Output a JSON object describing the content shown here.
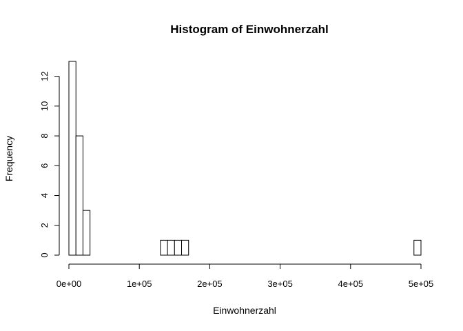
{
  "chart_data": {
    "type": "bar",
    "title": "Histogram of Einwohnerzahl",
    "xlabel": "Einwohnerzahl",
    "ylabel": "Frequency",
    "bin_width": 10000,
    "bin_starts": [
      0,
      10000,
      20000,
      30000,
      40000,
      50000,
      60000,
      70000,
      80000,
      90000,
      100000,
      110000,
      120000,
      130000,
      140000,
      150000,
      160000,
      170000,
      180000,
      190000,
      200000,
      210000,
      220000,
      230000,
      240000,
      250000,
      260000,
      270000,
      280000,
      290000,
      300000,
      310000,
      320000,
      330000,
      340000,
      350000,
      360000,
      370000,
      380000,
      390000,
      400000,
      410000,
      420000,
      430000,
      440000,
      450000,
      460000,
      470000,
      480000,
      490000
    ],
    "values": [
      13,
      8,
      3,
      0,
      0,
      0,
      0,
      0,
      0,
      0,
      0,
      0,
      0,
      1,
      1,
      1,
      1,
      0,
      0,
      0,
      0,
      0,
      0,
      0,
      0,
      0,
      0,
      0,
      0,
      0,
      0,
      0,
      0,
      0,
      0,
      0,
      0,
      0,
      0,
      0,
      0,
      0,
      0,
      0,
      0,
      0,
      0,
      0,
      0,
      1
    ],
    "xlim": [
      0,
      500000
    ],
    "ylim": [
      0,
      13
    ],
    "x_ticks": [
      0,
      100000,
      200000,
      300000,
      400000,
      500000
    ],
    "x_tick_labels": [
      "0e+00",
      "1e+05",
      "2e+05",
      "3e+05",
      "4e+05",
      "5e+05"
    ],
    "y_ticks": [
      0,
      2,
      4,
      6,
      8,
      10,
      12
    ],
    "y_tick_labels": [
      "0",
      "2",
      "4",
      "6",
      "8",
      "10",
      "12"
    ],
    "grid": false,
    "bar_fill": "#ffffff",
    "bar_stroke": "#000000"
  }
}
